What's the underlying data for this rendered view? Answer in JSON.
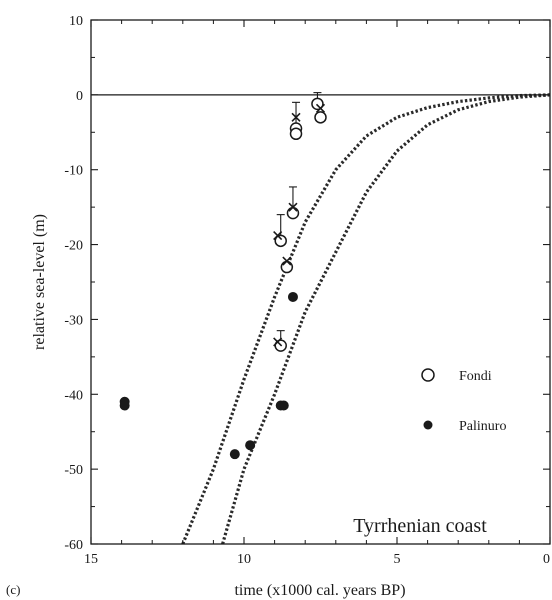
{
  "panel_label": "(c)",
  "chart_data": {
    "type": "scatter",
    "xlabel": "time (x1000 cal. years BP)",
    "ylabel": "relative sea-level (m)",
    "xlim": [
      15,
      0
    ],
    "ylim": [
      -60,
      10
    ],
    "x_ticks": [
      15,
      10,
      5,
      0
    ],
    "x_tick_labels": [
      "15",
      "10",
      "5",
      "0"
    ],
    "y_ticks": [
      10,
      0,
      -10,
      -20,
      -30,
      -40,
      -50,
      -60
    ],
    "y_tick_labels": [
      "10",
      "0",
      "-10",
      "-20",
      "-30",
      "-40",
      "-50",
      "-60"
    ],
    "grid": false,
    "zero_line": true,
    "legend": {
      "placement": "right",
      "entries": [
        {
          "label": "Fondi",
          "marker": "open-circle"
        },
        {
          "label": "Palinuro",
          "marker": "filled-circle"
        }
      ]
    },
    "annotation": "Tyrrhenian coast",
    "series": [
      {
        "name": "Fondi",
        "marker": "open-circle",
        "points": [
          {
            "x": 8.3,
            "y": -4.5,
            "err_up": 3.5
          },
          {
            "x": 8.3,
            "y": -5.2,
            "err_up": 0
          },
          {
            "x": 7.6,
            "y": -1.2,
            "err_up": 1.5
          },
          {
            "x": 7.5,
            "y": -3.0,
            "err_up": 0
          },
          {
            "x": 8.4,
            "y": -15.8,
            "err_up": 3.5
          },
          {
            "x": 8.8,
            "y": -19.5,
            "err_up": 3.5
          },
          {
            "x": 8.6,
            "y": -23.0,
            "err_up": 0
          },
          {
            "x": 8.8,
            "y": -33.5,
            "err_up": 2.0
          }
        ]
      },
      {
        "name": "Palinuro",
        "marker": "filled-circle",
        "points": [
          {
            "x": 13.9,
            "y": -41.0
          },
          {
            "x": 13.9,
            "y": -41.5
          },
          {
            "x": 8.8,
            "y": -41.5
          },
          {
            "x": 8.7,
            "y": -41.5
          },
          {
            "x": 10.3,
            "y": -48.0
          },
          {
            "x": 9.8,
            "y": -46.8
          },
          {
            "x": 8.4,
            "y": -27.0
          }
        ]
      },
      {
        "name": "crosses",
        "marker": "x",
        "points": [
          {
            "x": 8.3,
            "y": -3.0
          },
          {
            "x": 7.5,
            "y": -1.8
          },
          {
            "x": 8.4,
            "y": -15.0
          },
          {
            "x": 8.9,
            "y": -18.8
          },
          {
            "x": 8.6,
            "y": -22.2
          },
          {
            "x": 8.9,
            "y": -33.0
          }
        ]
      },
      {
        "name": "model-curve-left",
        "style": "dotted",
        "points": [
          {
            "x": 12.0,
            "y": -60
          },
          {
            "x": 11.0,
            "y": -50
          },
          {
            "x": 10.0,
            "y": -38
          },
          {
            "x": 9.0,
            "y": -27
          },
          {
            "x": 8.0,
            "y": -17
          },
          {
            "x": 7.0,
            "y": -10
          },
          {
            "x": 6.0,
            "y": -5.5
          },
          {
            "x": 5.0,
            "y": -3
          },
          {
            "x": 4.0,
            "y": -1.7
          },
          {
            "x": 3.0,
            "y": -0.9
          },
          {
            "x": 2.0,
            "y": -0.4
          },
          {
            "x": 1.0,
            "y": -0.1
          },
          {
            "x": 0.0,
            "y": 0
          }
        ]
      },
      {
        "name": "model-curve-right",
        "style": "dotted",
        "points": [
          {
            "x": 10.7,
            "y": -60
          },
          {
            "x": 10.0,
            "y": -50
          },
          {
            "x": 9.0,
            "y": -40
          },
          {
            "x": 8.0,
            "y": -29
          },
          {
            "x": 7.0,
            "y": -21
          },
          {
            "x": 6.0,
            "y": -13
          },
          {
            "x": 5.0,
            "y": -7.5
          },
          {
            "x": 4.0,
            "y": -4
          },
          {
            "x": 3.0,
            "y": -2
          },
          {
            "x": 2.0,
            "y": -0.9
          },
          {
            "x": 1.0,
            "y": -0.3
          },
          {
            "x": 0.0,
            "y": 0
          }
        ]
      }
    ]
  }
}
